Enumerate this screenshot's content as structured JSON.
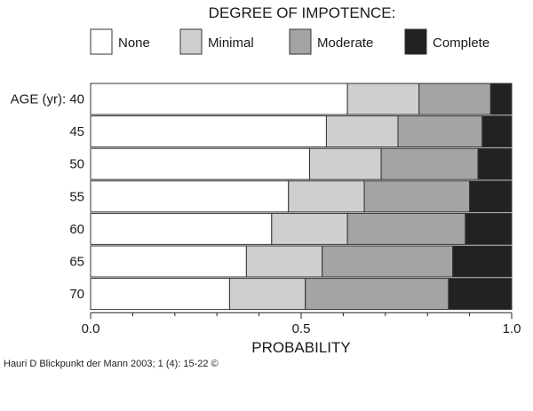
{
  "chart_data": {
    "type": "bar",
    "orientation": "horizontal",
    "stacked": true,
    "legend_title": "DEGREE OF IMPOTENCE:",
    "legend_position": "top",
    "ylabel_prefix": "AGE (yr):",
    "categories": [
      "40",
      "45",
      "50",
      "55",
      "60",
      "65",
      "70"
    ],
    "series": [
      {
        "name": "None",
        "color": "#ffffff",
        "values": [
          0.61,
          0.56,
          0.52,
          0.47,
          0.43,
          0.37,
          0.33
        ]
      },
      {
        "name": "Minimal",
        "color": "#cfcfcf",
        "values": [
          0.17,
          0.17,
          0.17,
          0.18,
          0.18,
          0.18,
          0.18
        ]
      },
      {
        "name": "Moderate",
        "color": "#a4a4a4",
        "values": [
          0.17,
          0.2,
          0.23,
          0.25,
          0.28,
          0.31,
          0.34
        ]
      },
      {
        "name": "Complete",
        "color": "#222222",
        "values": [
          0.05,
          0.07,
          0.08,
          0.1,
          0.11,
          0.14,
          0.15
        ]
      }
    ],
    "xlabel": "PROBABILITY",
    "xlim": [
      0,
      1
    ],
    "xticks": [
      "0.0",
      "0.5",
      "1.0"
    ],
    "xminor_step": 0.1,
    "grid": false
  },
  "caption": "Hauri D Blickpunkt der Mann 2003; 1 (4): 15-22 ©"
}
